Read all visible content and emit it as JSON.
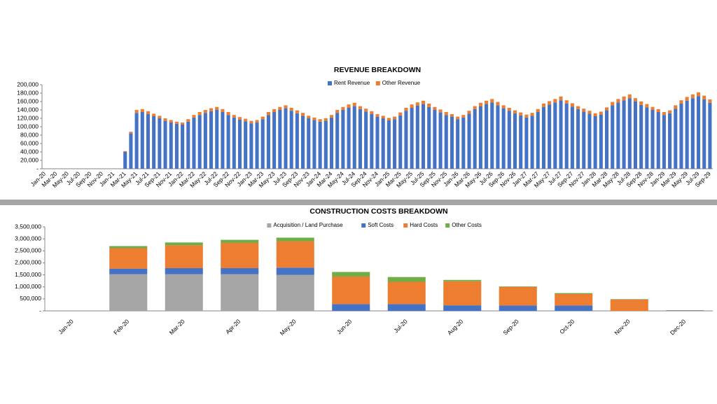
{
  "chart_data": [
    {
      "type": "bar",
      "stacked": true,
      "grid": false,
      "title": "REVENUE BREAKDOWN",
      "categories": [
        "Jan-20",
        null,
        "Mar-20",
        null,
        "May-20",
        null,
        "Jul-20",
        null,
        "Sep-20",
        null,
        "Nov-20",
        null,
        "Jan-21",
        null,
        "Mar-21",
        null,
        "May-21",
        null,
        "Jul-21",
        null,
        "Sep-21",
        null,
        "Nov-21",
        null,
        "Jan-22",
        null,
        "Mar-22",
        null,
        "May-22",
        null,
        "Jul-22",
        null,
        "Sep-22",
        null,
        "Nov-22",
        null,
        "Jan-23",
        null,
        "Mar-23",
        null,
        "May-23",
        null,
        "Jul-23",
        null,
        "Sep-23",
        null,
        "Nov-23",
        null,
        "Jan-24",
        null,
        "Mar-24",
        null,
        "May-24",
        null,
        "Jul-24",
        null,
        "Sep-24",
        null,
        "Nov-24",
        null,
        "Jan-25",
        null,
        "Mar-25",
        null,
        "May-25",
        null,
        "Jul-25",
        null,
        "Sep-25",
        null,
        "Nov-25",
        null,
        "Jan-26",
        null,
        "Mar-26",
        null,
        "May-26",
        null,
        "Jul-26",
        null,
        "Sep-26",
        null,
        "Nov-26",
        null,
        "Jan-27",
        null,
        "Mar-27",
        null,
        "May-27",
        null,
        "Jul-27",
        null,
        "Sep-27",
        null,
        "Nov-27",
        null,
        "Jan-28",
        null,
        "Mar-28",
        null,
        "May-28",
        null,
        "Jul-28",
        null,
        "Sep-28",
        null,
        "Nov-28",
        null,
        "Jan-29",
        null,
        "Mar-29",
        null,
        "May-29",
        null,
        "Jul-29",
        null,
        "Sep-29"
      ],
      "series": [
        {
          "name": "Rent Revenue",
          "color": "#4472c4",
          "values": [
            0,
            0,
            0,
            0,
            0,
            0,
            0,
            0,
            0,
            0,
            0,
            0,
            0,
            0,
            40000,
            84000,
            133000,
            135000,
            130000,
            125000,
            120000,
            114000,
            110000,
            107000,
            105000,
            112000,
            122000,
            128000,
            133000,
            137000,
            140000,
            135000,
            128000,
            122000,
            117000,
            113000,
            108000,
            110000,
            118000,
            128000,
            135000,
            140000,
            144000,
            138000,
            132000,
            126000,
            120000,
            116000,
            112000,
            114000,
            122000,
            133000,
            140000,
            145000,
            149000,
            142000,
            136000,
            130000,
            124000,
            120000,
            115000,
            118000,
            127000,
            138000,
            145000,
            150000,
            154000,
            147000,
            140000,
            134000,
            128000,
            124000,
            118000,
            122000,
            131000,
            142000,
            149000,
            154000,
            158000,
            151000,
            144000,
            138000,
            132000,
            127000,
            122000,
            126000,
            135000,
            147000,
            153000,
            158000,
            163000,
            155000,
            148000,
            142000,
            136000,
            131000,
            125000,
            129000,
            139000,
            151000,
            158000,
            163000,
            168000,
            160000,
            152000,
            146000,
            140000,
            135000,
            128000,
            132000,
            143000,
            155000,
            162000,
            168000,
            173000,
            165000,
            157000
          ]
        },
        {
          "name": "Other Revenue",
          "color": "#ed7d31",
          "values": [
            0,
            0,
            0,
            0,
            0,
            0,
            0,
            0,
            0,
            0,
            0,
            0,
            0,
            0,
            2000,
            4000,
            7000,
            7000,
            7000,
            6000,
            6000,
            6000,
            6000,
            5000,
            5000,
            6000,
            6000,
            7000,
            7000,
            7000,
            7000,
            7000,
            7000,
            6000,
            6000,
            6000,
            6000,
            6000,
            6000,
            7000,
            7000,
            7000,
            7000,
            7000,
            7000,
            7000,
            6000,
            6000,
            6000,
            6000,
            6000,
            7000,
            7000,
            8000,
            8000,
            7000,
            7000,
            7000,
            6000,
            6000,
            6000,
            6000,
            7000,
            7000,
            8000,
            8000,
            8000,
            8000,
            7000,
            7000,
            7000,
            6000,
            6000,
            6000,
            7000,
            7000,
            8000,
            8000,
            8000,
            8000,
            7000,
            7000,
            7000,
            7000,
            7000,
            7000,
            7000,
            8000,
            8000,
            8000,
            9000,
            8000,
            8000,
            7000,
            7000,
            7000,
            7000,
            7000,
            7000,
            8000,
            8000,
            9000,
            9000,
            8000,
            8000,
            8000,
            7000,
            7000,
            7000,
            7000,
            8000,
            8000,
            9000,
            9000,
            9000,
            9000,
            8000
          ]
        }
      ],
      "ylim": [
        0,
        200000
      ],
      "yticks": [
        {
          "value": 0,
          "label": "-"
        },
        {
          "value": 20000,
          "label": "20,000"
        },
        {
          "value": 40000,
          "label": "40,000"
        },
        {
          "value": 60000,
          "label": "60,000"
        },
        {
          "value": 80000,
          "label": "80,000"
        },
        {
          "value": 100000,
          "label": "100,000"
        },
        {
          "value": 120000,
          "label": "120,000"
        },
        {
          "value": 140000,
          "label": "140,000"
        },
        {
          "value": 160000,
          "label": "160,000"
        },
        {
          "value": 180000,
          "label": "180,000"
        },
        {
          "value": 200000,
          "label": "200,000"
        }
      ]
    },
    {
      "type": "bar",
      "stacked": true,
      "grid": false,
      "title": "CONSTRUCTION COSTS BREAKDOWN",
      "categories": [
        "Jan-20",
        "Feb-20",
        "Mar-20",
        "Apr-20",
        "May-20",
        "Jun-20",
        "Jul-20",
        "Aug-20",
        "Sep-20",
        "Oct-20",
        "Nov-20",
        "Dec-20"
      ],
      "series": [
        {
          "name": "Acquisition / Land Purchase",
          "color": "#a5a5a5",
          "values": [
            0,
            1530000,
            1530000,
            1530000,
            1500000,
            0,
            0,
            0,
            0,
            0,
            0,
            0
          ]
        },
        {
          "name": "Soft Costs",
          "color": "#4472c4",
          "values": [
            0,
            230000,
            250000,
            250000,
            300000,
            280000,
            280000,
            230000,
            220000,
            220000,
            0,
            20000
          ]
        },
        {
          "name": "Hard Costs",
          "color": "#ed7d31",
          "values": [
            0,
            850000,
            950000,
            1050000,
            1100000,
            1150000,
            930000,
            1000000,
            780000,
            480000,
            470000,
            10000
          ]
        },
        {
          "name": "Other Costs",
          "color": "#70ad47",
          "values": [
            0,
            90000,
            120000,
            130000,
            150000,
            190000,
            200000,
            60000,
            20000,
            40000,
            20000,
            0
          ]
        }
      ],
      "ylim": [
        0,
        3500000
      ],
      "yticks": [
        {
          "value": 0,
          "label": "-"
        },
        {
          "value": 500000,
          "label": "500,000"
        },
        {
          "value": 1000000,
          "label": "1,000,000"
        },
        {
          "value": 1500000,
          "label": "1,500,000"
        },
        {
          "value": 2000000,
          "label": "2,000,000"
        },
        {
          "value": 2500000,
          "label": "2,500,000"
        },
        {
          "value": 3000000,
          "label": "3,000,000"
        },
        {
          "value": 3500000,
          "label": "3,500,000"
        }
      ]
    }
  ]
}
